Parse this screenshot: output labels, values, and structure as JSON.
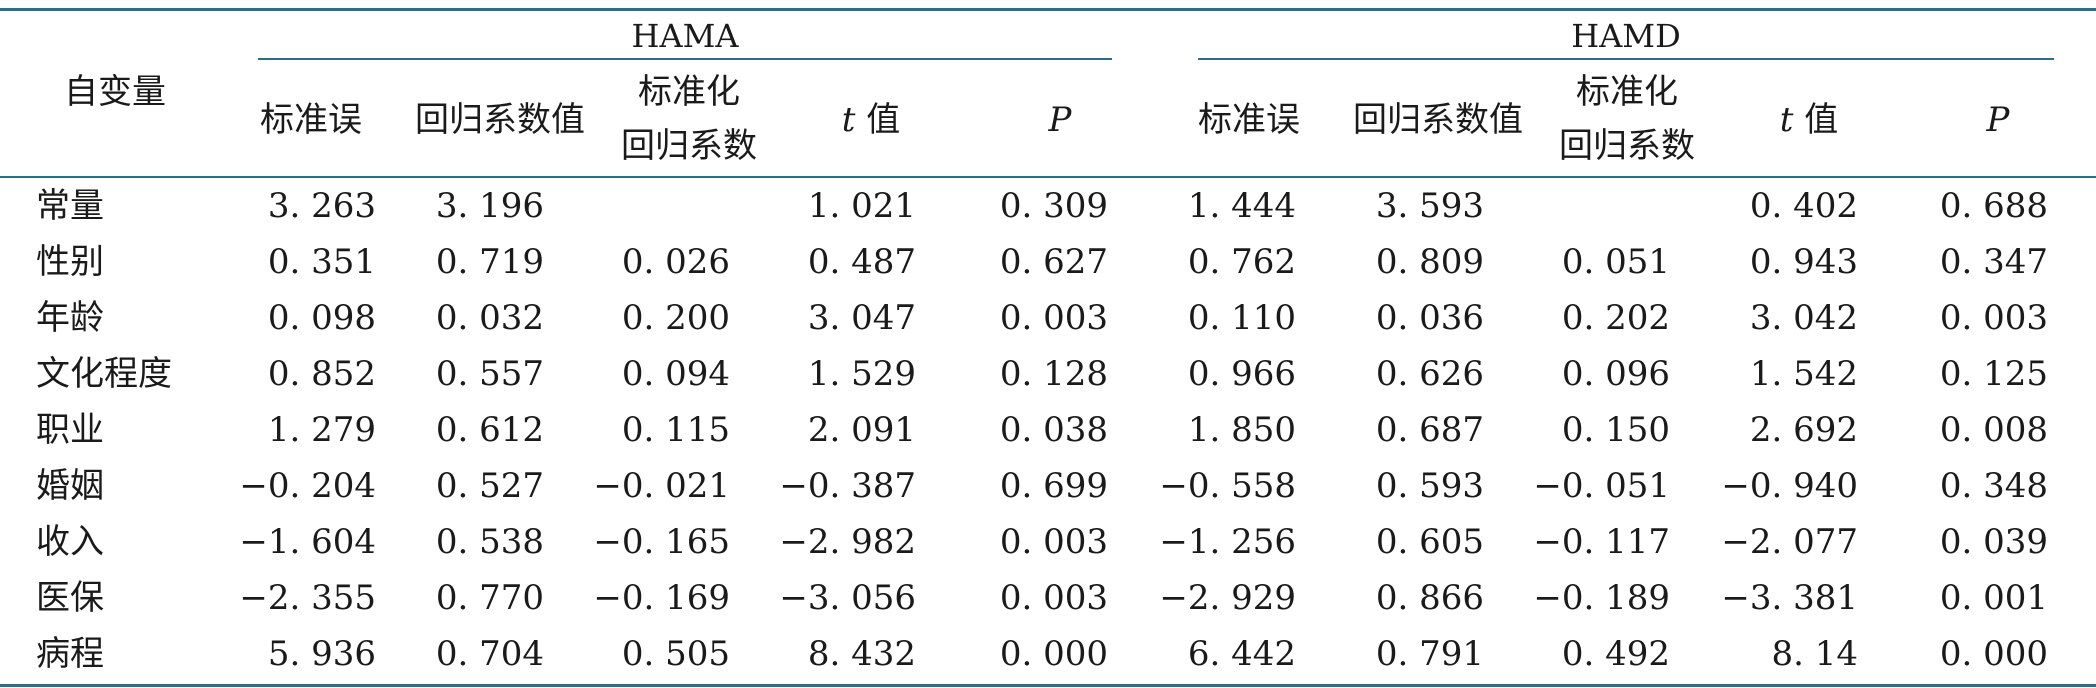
{
  "table": {
    "row_header_label": "自变量",
    "groups": [
      {
        "name": "HAMA"
      },
      {
        "name": "HAMD"
      }
    ],
    "subheaders": {
      "std_error": "标准误",
      "coef": "回归系数值",
      "std_coef_line1": "标准化",
      "std_coef_line2": "回归系数",
      "t_italic": "t",
      "t_suffix": " 值",
      "p": "P"
    },
    "rows": [
      {
        "label": "常量",
        "hama": [
          "3. 263",
          "3. 196",
          "",
          "1. 021",
          "0. 309"
        ],
        "hamd": [
          "1. 444",
          "3. 593",
          "",
          "0. 402",
          "0. 688"
        ]
      },
      {
        "label": "性别",
        "hama": [
          "0. 351",
          "0. 719",
          "0. 026",
          "0. 487",
          "0. 627"
        ],
        "hamd": [
          "0. 762",
          "0. 809",
          "0. 051",
          "0. 943",
          "0. 347"
        ]
      },
      {
        "label": "年龄",
        "hama": [
          "0. 098",
          "0. 032",
          "0. 200",
          "3. 047",
          "0. 003"
        ],
        "hamd": [
          "0. 110",
          "0. 036",
          "0. 202",
          "3. 042",
          "0. 003"
        ]
      },
      {
        "label": "文化程度",
        "hama": [
          "0. 852",
          "0. 557",
          "0. 094",
          "1. 529",
          "0. 128"
        ],
        "hamd": [
          "0. 966",
          "0. 626",
          "0. 096",
          "1. 542",
          "0. 125"
        ]
      },
      {
        "label": "职业",
        "hama": [
          "1. 279",
          "0. 612",
          "0. 115",
          "2. 091",
          "0. 038"
        ],
        "hamd": [
          "1. 850",
          "0. 687",
          "0. 150",
          "2. 692",
          "0. 008"
        ]
      },
      {
        "label": "婚姻",
        "hama": [
          "−0. 204",
          "0. 527",
          "−0. 021",
          "−0. 387",
          "0. 699"
        ],
        "hamd": [
          "−0. 558",
          "0. 593",
          "−0. 051",
          "−0. 940",
          "0. 348"
        ]
      },
      {
        "label": "收入",
        "hama": [
          "−1. 604",
          "0. 538",
          "−0. 165",
          "−2. 982",
          "0. 003"
        ],
        "hamd": [
          "−1. 256",
          "0. 605",
          "−0. 117",
          "−2. 077",
          "0. 039"
        ]
      },
      {
        "label": "医保",
        "hama": [
          "−2. 355",
          "0. 770",
          "−0. 169",
          "−3. 056",
          "0. 003"
        ],
        "hamd": [
          "−2. 929",
          "0. 866",
          "−0. 189",
          "−3. 381",
          "0. 001"
        ]
      },
      {
        "label": "病程",
        "hama": [
          "5. 936",
          "0. 704",
          "0. 505",
          "8. 432",
          "0. 000"
        ],
        "hamd": [
          "6. 442",
          "0. 791",
          "0. 492",
          "8. 14",
          "0. 000"
        ]
      }
    ]
  }
}
